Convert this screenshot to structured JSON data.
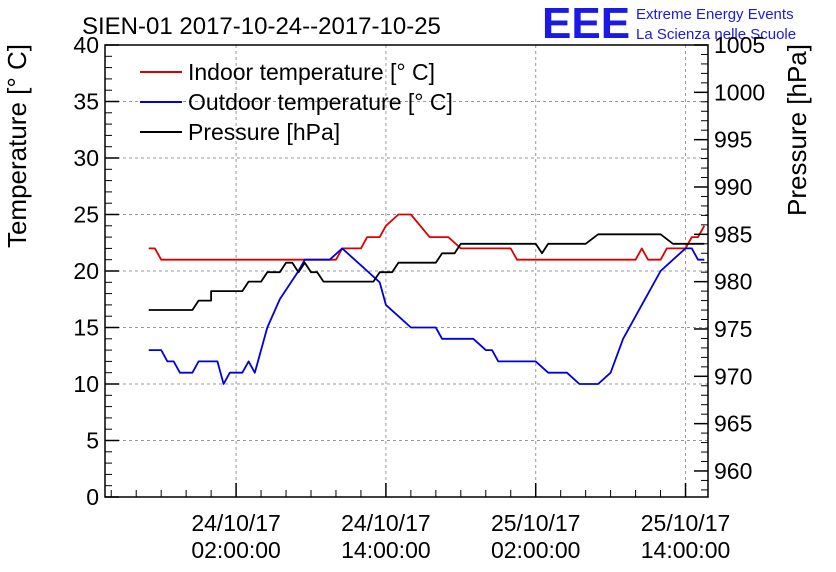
{
  "chart_data": {
    "type": "line",
    "title": "SIEN-01 2017-10-24--2017-10-25",
    "logo": {
      "mark": "EEE",
      "line1": "Extreme Energy Events",
      "line2": "La Scienza nelle Scuole"
    },
    "y_left": {
      "label": "Temperature [° C]",
      "lim": [
        0,
        40
      ],
      "ticks": [
        "0",
        "5",
        "10",
        "15",
        "20",
        "25",
        "30",
        "35",
        "40"
      ]
    },
    "y_right": {
      "label": "Pressure [hPa]",
      "lim": [
        957.25,
        1005
      ],
      "ticks": [
        "960",
        "965",
        "970",
        "975",
        "980",
        "985",
        "990",
        "995",
        "1000",
        "1005"
      ]
    },
    "x": {
      "unit": "hours since 2017-10-24 00:00",
      "lim": [
        -8.5,
        39.8
      ],
      "ticks": [
        {
          "pos": 2,
          "line1": "24/10/17",
          "line2": "02:00:00"
        },
        {
          "pos": 14,
          "line1": "24/10/17",
          "line2": "14:00:00"
        },
        {
          "pos": 26,
          "line1": "25/10/17",
          "line2": "02:00:00"
        },
        {
          "pos": 38,
          "line1": "25/10/17",
          "line2": "14:00:00"
        }
      ]
    },
    "grid": true,
    "legend": {
      "position": "top-left"
    },
    "series": [
      {
        "name": "Indoor temperature [° C]",
        "color": "#dd0000",
        "axis": "left",
        "points": [
          [
            -5,
            22
          ],
          [
            -4.5,
            22
          ],
          [
            -4,
            21
          ],
          [
            -3,
            21
          ],
          [
            2,
            21
          ],
          [
            10,
            21
          ],
          [
            10.5,
            22
          ],
          [
            12,
            22
          ],
          [
            12.5,
            23
          ],
          [
            13.5,
            23
          ],
          [
            14,
            24
          ],
          [
            15,
            25
          ],
          [
            16,
            25
          ],
          [
            17.5,
            23
          ],
          [
            19,
            23
          ],
          [
            20,
            22
          ],
          [
            24,
            22
          ],
          [
            24.5,
            21
          ],
          [
            26,
            21
          ],
          [
            33,
            21
          ],
          [
            34,
            21
          ],
          [
            34.5,
            22
          ],
          [
            35,
            21
          ],
          [
            36,
            21
          ],
          [
            36.5,
            22
          ],
          [
            38,
            22
          ],
          [
            38.5,
            23
          ],
          [
            39,
            23
          ],
          [
            39.5,
            24
          ]
        ]
      },
      {
        "name": "Outdoor temperature [° C]",
        "color": "#0000dd",
        "axis": "left",
        "points": [
          [
            -5,
            13
          ],
          [
            -4,
            13
          ],
          [
            -3.5,
            12
          ],
          [
            -3,
            12
          ],
          [
            -2.5,
            11
          ],
          [
            -1.5,
            11
          ],
          [
            -1,
            12
          ],
          [
            0.5,
            12
          ],
          [
            1,
            10
          ],
          [
            1.5,
            11
          ],
          [
            2.5,
            11
          ],
          [
            3,
            12
          ],
          [
            3.5,
            11
          ],
          [
            4.5,
            15
          ],
          [
            5.5,
            17.5
          ],
          [
            7,
            20
          ],
          [
            7.5,
            21
          ],
          [
            9.5,
            21
          ],
          [
            10.5,
            22
          ],
          [
            11.5,
            21
          ],
          [
            12.5,
            20
          ],
          [
            13.5,
            19
          ],
          [
            14,
            17
          ],
          [
            15,
            16
          ],
          [
            16,
            15
          ],
          [
            18,
            15
          ],
          [
            18.5,
            14
          ],
          [
            21,
            14
          ],
          [
            22,
            13
          ],
          [
            22.5,
            13
          ],
          [
            23,
            12
          ],
          [
            26,
            12
          ],
          [
            27,
            11
          ],
          [
            28.5,
            11
          ],
          [
            29.5,
            10
          ],
          [
            31,
            10
          ],
          [
            32,
            11
          ],
          [
            33,
            14
          ],
          [
            34,
            16
          ],
          [
            35,
            18
          ],
          [
            36,
            20
          ],
          [
            37,
            21
          ],
          [
            38,
            22
          ],
          [
            38.5,
            22
          ],
          [
            39,
            21
          ],
          [
            39.5,
            21
          ]
        ]
      },
      {
        "name": "Pressure [hPa]",
        "color": "#000000",
        "axis": "right",
        "points": [
          [
            -5,
            977
          ],
          [
            -1.5,
            977
          ],
          [
            -1,
            978
          ],
          [
            0,
            978
          ],
          [
            0,
            979
          ],
          [
            2.5,
            979
          ],
          [
            3,
            980
          ],
          [
            4,
            980
          ],
          [
            4.5,
            981
          ],
          [
            5.5,
            981
          ],
          [
            6,
            982
          ],
          [
            6.5,
            982
          ],
          [
            7,
            981
          ],
          [
            7.5,
            982
          ],
          [
            8,
            981
          ],
          [
            8.5,
            981
          ],
          [
            9,
            980
          ],
          [
            13,
            980
          ],
          [
            13.5,
            981
          ],
          [
            14.5,
            981
          ],
          [
            15,
            982
          ],
          [
            18,
            982
          ],
          [
            18.5,
            983
          ],
          [
            19.5,
            983
          ],
          [
            20,
            984
          ],
          [
            22,
            984
          ],
          [
            22.5,
            984
          ],
          [
            24,
            984
          ],
          [
            26,
            984
          ],
          [
            26.5,
            983
          ],
          [
            27,
            984
          ],
          [
            30,
            984
          ],
          [
            31,
            985
          ],
          [
            36,
            985
          ],
          [
            37,
            984
          ],
          [
            38,
            984
          ],
          [
            39.5,
            984
          ]
        ]
      }
    ]
  }
}
